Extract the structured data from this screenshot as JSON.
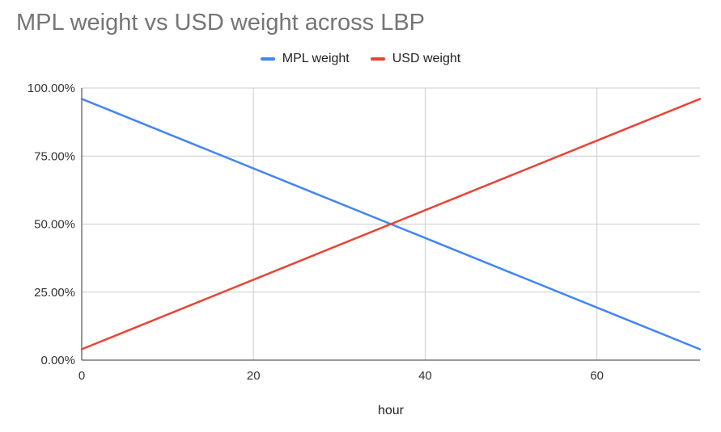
{
  "chart_data": {
    "type": "line",
    "title": "MPL weight vs USD weight across LBP",
    "xlabel": "hour",
    "ylabel": "",
    "xlim": [
      0,
      72
    ],
    "ylim": [
      0,
      1
    ],
    "x_ticks": [
      0,
      20,
      40,
      60
    ],
    "x_tick_labels": [
      "0",
      "20",
      "40",
      "60"
    ],
    "y_ticks": [
      0,
      0.25,
      0.5,
      0.75,
      1
    ],
    "y_tick_labels": [
      "0.00%",
      "25.00%",
      "50.00%",
      "75.00%",
      "100.00%"
    ],
    "grid": true,
    "legend_position": "top",
    "series": [
      {
        "name": "MPL weight",
        "color": "#4285f4",
        "x": [
          0,
          72
        ],
        "y": [
          0.96,
          0.04
        ]
      },
      {
        "name": "USD weight",
        "color": "#ea4335",
        "x": [
          0,
          72
        ],
        "y": [
          0.04,
          0.96
        ]
      }
    ]
  }
}
